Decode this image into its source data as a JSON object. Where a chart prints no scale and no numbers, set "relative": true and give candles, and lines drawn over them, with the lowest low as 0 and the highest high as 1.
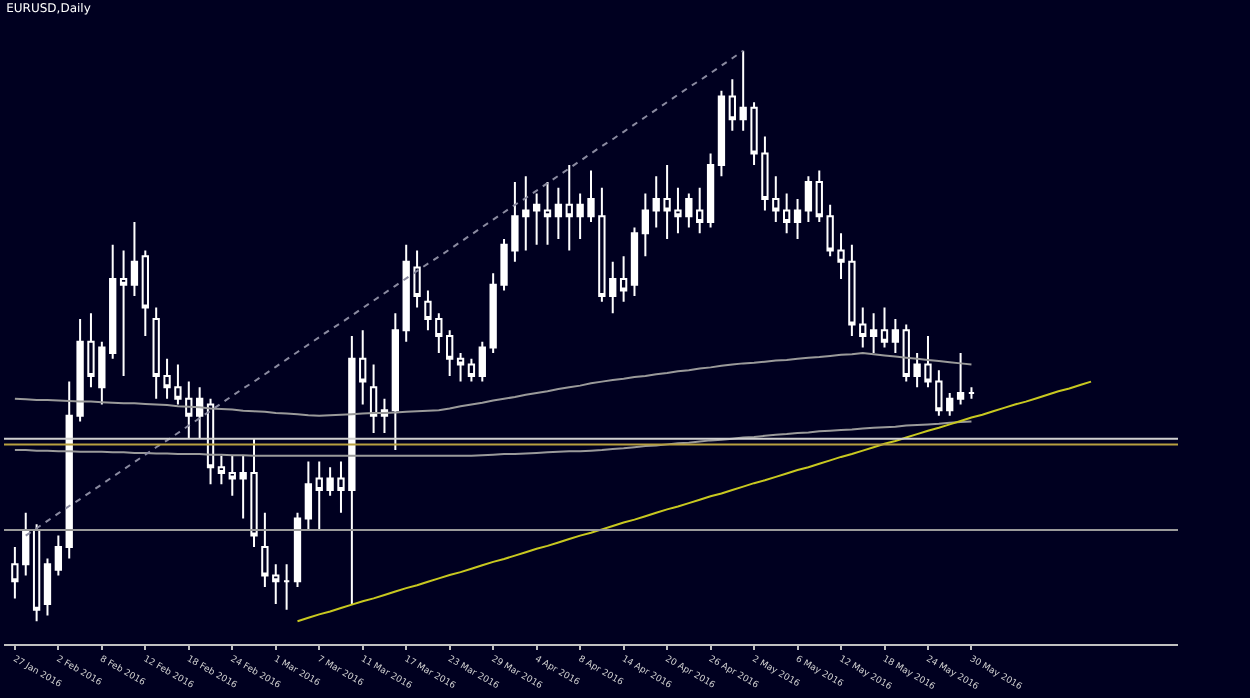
{
  "chart_data": {
    "type": "candlestick",
    "title": "EURUSD,Daily",
    "relative": true,
    "categories": [
      "27 Jan 2016",
      null,
      null,
      null,
      "2 Feb 2016",
      null,
      null,
      null,
      "8 Feb 2016",
      null,
      null,
      null,
      "12 Feb 2016",
      null,
      null,
      null,
      "18 Feb 2016",
      null,
      null,
      null,
      "24 Feb 2016",
      null,
      null,
      null,
      "1 Mar 2016",
      null,
      null,
      null,
      "7 Mar 2016",
      null,
      null,
      null,
      "11 Mar 2016",
      null,
      null,
      null,
      "17 Mar 2016",
      null,
      null,
      null,
      "23 Mar 2016",
      null,
      null,
      null,
      "29 Mar 2016",
      null,
      null,
      null,
      "4 Apr 2016",
      null,
      null,
      null,
      "8 Apr 2016",
      null,
      null,
      null,
      "14 Apr 2016",
      null,
      null,
      null,
      "20 Apr 2016",
      null,
      null,
      null,
      "26 Apr 2016",
      null,
      null,
      null,
      "2 May 2016",
      null,
      null,
      null,
      "6 May 2016",
      null,
      null,
      null,
      "12 May 2016",
      null,
      null,
      null,
      "18 May 2016",
      null,
      null,
      null,
      "24 May 2016",
      null,
      null,
      null,
      "30 May 2016",
      null,
      null,
      null,
      null,
      null,
      null,
      null,
      null,
      null,
      null,
      null
    ],
    "ohlc": [
      [
        0.1,
        0.13,
        0.04,
        0.07
      ],
      [
        0.1,
        0.19,
        0.08,
        0.16
      ],
      [
        0.16,
        0.17,
        0.0,
        0.02
      ],
      [
        0.03,
        0.11,
        0.01,
        0.1
      ],
      [
        0.09,
        0.15,
        0.08,
        0.13
      ],
      [
        0.13,
        0.42,
        0.11,
        0.36
      ],
      [
        0.36,
        0.53,
        0.35,
        0.49
      ],
      [
        0.49,
        0.54,
        0.41,
        0.43
      ],
      [
        0.41,
        0.49,
        0.38,
        0.48
      ],
      [
        0.47,
        0.66,
        0.46,
        0.6
      ],
      [
        0.6,
        0.65,
        0.43,
        0.59
      ],
      [
        0.59,
        0.7,
        0.57,
        0.63
      ],
      [
        0.64,
        0.65,
        0.5,
        0.55
      ],
      [
        0.53,
        0.55,
        0.39,
        0.43
      ],
      [
        0.43,
        0.46,
        0.39,
        0.41
      ],
      [
        0.41,
        0.45,
        0.38,
        0.39
      ],
      [
        0.39,
        0.42,
        0.32,
        0.36
      ],
      [
        0.36,
        0.41,
        0.32,
        0.39
      ],
      [
        0.38,
        0.39,
        0.24,
        0.27
      ],
      [
        0.27,
        0.29,
        0.24,
        0.26
      ],
      [
        0.26,
        0.29,
        0.22,
        0.25
      ],
      [
        0.25,
        0.29,
        0.18,
        0.26
      ],
      [
        0.26,
        0.32,
        0.13,
        0.15
      ],
      [
        0.13,
        0.19,
        0.06,
        0.08
      ],
      [
        0.08,
        0.1,
        0.03,
        0.07
      ],
      [
        0.07,
        0.1,
        0.02,
        0.07
      ],
      [
        0.07,
        0.19,
        0.06,
        0.18
      ],
      [
        0.18,
        0.28,
        0.16,
        0.24
      ],
      [
        0.25,
        0.28,
        0.16,
        0.23
      ],
      [
        0.23,
        0.27,
        0.22,
        0.25
      ],
      [
        0.25,
        0.28,
        0.19,
        0.23
      ],
      [
        0.23,
        0.5,
        0.03,
        0.46
      ],
      [
        0.46,
        0.51,
        0.38,
        0.42
      ],
      [
        0.41,
        0.45,
        0.33,
        0.36
      ],
      [
        0.36,
        0.39,
        0.33,
        0.37
      ],
      [
        0.37,
        0.54,
        0.3,
        0.51
      ],
      [
        0.51,
        0.66,
        0.49,
        0.63
      ],
      [
        0.62,
        0.65,
        0.55,
        0.57
      ],
      [
        0.56,
        0.58,
        0.51,
        0.53
      ],
      [
        0.53,
        0.54,
        0.47,
        0.5
      ],
      [
        0.5,
        0.51,
        0.43,
        0.46
      ],
      [
        0.46,
        0.47,
        0.42,
        0.45
      ],
      [
        0.45,
        0.46,
        0.42,
        0.43
      ],
      [
        0.43,
        0.49,
        0.42,
        0.48
      ],
      [
        0.48,
        0.61,
        0.47,
        0.59
      ],
      [
        0.59,
        0.67,
        0.58,
        0.66
      ],
      [
        0.65,
        0.77,
        0.63,
        0.71
      ],
      [
        0.71,
        0.78,
        0.65,
        0.72
      ],
      [
        0.72,
        0.75,
        0.66,
        0.73
      ],
      [
        0.72,
        0.77,
        0.66,
        0.71
      ],
      [
        0.71,
        0.76,
        0.67,
        0.73
      ],
      [
        0.73,
        0.8,
        0.65,
        0.71
      ],
      [
        0.71,
        0.75,
        0.67,
        0.73
      ],
      [
        0.71,
        0.79,
        0.7,
        0.74
      ],
      [
        0.71,
        0.76,
        0.56,
        0.57
      ],
      [
        0.57,
        0.63,
        0.54,
        0.6
      ],
      [
        0.6,
        0.64,
        0.56,
        0.58
      ],
      [
        0.59,
        0.69,
        0.57,
        0.68
      ],
      [
        0.68,
        0.75,
        0.64,
        0.72
      ],
      [
        0.72,
        0.78,
        0.69,
        0.74
      ],
      [
        0.74,
        0.8,
        0.67,
        0.72
      ],
      [
        0.72,
        0.76,
        0.68,
        0.71
      ],
      [
        0.71,
        0.75,
        0.69,
        0.74
      ],
      [
        0.72,
        0.76,
        0.68,
        0.7
      ],
      [
        0.7,
        0.82,
        0.69,
        0.8
      ],
      [
        0.8,
        0.93,
        0.78,
        0.92
      ],
      [
        0.92,
        0.95,
        0.86,
        0.88
      ],
      [
        0.88,
        1.0,
        0.86,
        0.9
      ],
      [
        0.9,
        0.91,
        0.8,
        0.82
      ],
      [
        0.82,
        0.85,
        0.72,
        0.74
      ],
      [
        0.74,
        0.78,
        0.7,
        0.72
      ],
      [
        0.72,
        0.75,
        0.68,
        0.7
      ],
      [
        0.7,
        0.74,
        0.67,
        0.72
      ],
      [
        0.72,
        0.78,
        0.7,
        0.77
      ],
      [
        0.77,
        0.79,
        0.7,
        0.71
      ],
      [
        0.71,
        0.73,
        0.64,
        0.65
      ],
      [
        0.65,
        0.68,
        0.6,
        0.63
      ],
      [
        0.63,
        0.66,
        0.5,
        0.52
      ],
      [
        0.52,
        0.55,
        0.48,
        0.5
      ],
      [
        0.5,
        0.54,
        0.47,
        0.51
      ],
      [
        0.51,
        0.55,
        0.48,
        0.49
      ],
      [
        0.49,
        0.53,
        0.47,
        0.51
      ],
      [
        0.51,
        0.52,
        0.42,
        0.43
      ],
      [
        0.43,
        0.47,
        0.41,
        0.45
      ],
      [
        0.45,
        0.5,
        0.41,
        0.42
      ],
      [
        0.42,
        0.44,
        0.36,
        0.37
      ],
      [
        0.37,
        0.4,
        0.36,
        0.39
      ],
      [
        0.39,
        0.47,
        0.38,
        0.4
      ],
      [
        0.4,
        0.41,
        0.39,
        0.4
      ],
      null,
      null,
      null,
      null,
      null,
      null,
      null,
      null,
      null,
      null,
      null
    ],
    "series": [
      {
        "type": "line",
        "color": "#9a9a9a",
        "line_style": "solid",
        "values": [
          0.39,
          0.389,
          0.388,
          0.388,
          0.387,
          0.386,
          0.385,
          0.385,
          0.384,
          0.383,
          0.382,
          0.382,
          0.381,
          0.38,
          0.379,
          0.377,
          0.376,
          0.375,
          0.373,
          0.372,
          0.371,
          0.369,
          0.368,
          0.367,
          0.365,
          0.364,
          0.363,
          0.361,
          0.36,
          0.361,
          0.362,
          0.363,
          0.364,
          0.365,
          0.365,
          0.366,
          0.367,
          0.368,
          0.369,
          0.37,
          0.373,
          0.377,
          0.38,
          0.383,
          0.387,
          0.39,
          0.393,
          0.397,
          0.4,
          0.403,
          0.407,
          0.41,
          0.413,
          0.417,
          0.42,
          0.423,
          0.425,
          0.428,
          0.43,
          0.433,
          0.435,
          0.438,
          0.44,
          0.443,
          0.445,
          0.448,
          0.45,
          0.452,
          0.453,
          0.455,
          0.457,
          0.458,
          0.46,
          0.462,
          0.463,
          0.465,
          0.467,
          0.468,
          0.47,
          0.468,
          0.466,
          0.464,
          0.462,
          0.46,
          0.458,
          0.456,
          0.454,
          0.452,
          0.45,
          null,
          null,
          null,
          null,
          null,
          null,
          null,
          null,
          null,
          null,
          null
        ]
      },
      {
        "type": "line",
        "color": "#9a9a9a",
        "line_style": "solid",
        "values": [
          0.3,
          0.3,
          0.299,
          0.299,
          0.298,
          0.298,
          0.297,
          0.297,
          0.297,
          0.296,
          0.296,
          0.295,
          0.295,
          0.294,
          0.294,
          0.293,
          0.293,
          0.293,
          0.292,
          0.292,
          0.291,
          0.291,
          0.29,
          0.29,
          0.29,
          0.29,
          0.29,
          0.29,
          0.29,
          0.29,
          0.29,
          0.29,
          0.29,
          0.29,
          0.29,
          0.29,
          0.29,
          0.29,
          0.29,
          0.29,
          0.29,
          0.29,
          0.29,
          0.291,
          0.292,
          0.293,
          0.293,
          0.294,
          0.295,
          0.296,
          0.297,
          0.298,
          0.298,
          0.299,
          0.3,
          0.302,
          0.303,
          0.305,
          0.307,
          0.308,
          0.31,
          0.312,
          0.313,
          0.315,
          0.317,
          0.318,
          0.32,
          0.322,
          0.323,
          0.325,
          0.327,
          0.328,
          0.33,
          0.331,
          0.333,
          0.334,
          0.335,
          0.336,
          0.338,
          0.339,
          0.34,
          0.341,
          0.343,
          0.344,
          0.345,
          0.346,
          0.348,
          0.349,
          0.35,
          null,
          null,
          null,
          null,
          null,
          null,
          null,
          null,
          null,
          null,
          null
        ]
      },
      {
        "type": "line",
        "color": "#8a8aa0",
        "line_style": "dotted",
        "values": [
          null,
          0.15,
          0.163,
          0.176,
          0.189,
          0.202,
          0.214,
          0.227,
          0.24,
          0.253,
          0.266,
          0.279,
          0.292,
          0.305,
          0.317,
          0.33,
          0.343,
          0.356,
          0.369,
          0.382,
          0.395,
          0.408,
          0.42,
          0.433,
          0.446,
          0.459,
          0.472,
          0.485,
          0.498,
          0.511,
          0.523,
          0.536,
          0.549,
          0.562,
          0.575,
          0.588,
          0.601,
          0.614,
          0.627,
          0.639,
          0.652,
          0.665,
          0.678,
          0.691,
          0.704,
          0.717,
          0.73,
          0.742,
          0.755,
          0.768,
          0.781,
          0.794,
          0.807,
          0.82,
          0.833,
          0.845,
          0.858,
          0.871,
          0.884,
          0.897,
          0.91,
          0.923,
          0.936,
          0.948,
          0.961,
          0.974,
          0.987,
          1.0,
          null,
          null,
          null,
          null,
          null,
          null,
          null,
          null,
          null,
          null,
          null,
          null,
          null,
          null,
          null,
          null,
          null,
          null,
          null,
          null,
          null,
          null,
          null,
          null,
          null,
          null,
          null,
          null,
          null,
          null,
          null,
          null
        ]
      },
      {
        "type": "line",
        "color": "#c8c820",
        "line_style": "solid",
        "values": [
          null,
          null,
          null,
          null,
          null,
          null,
          null,
          null,
          null,
          null,
          null,
          null,
          null,
          null,
          null,
          null,
          null,
          null,
          null,
          null,
          null,
          null,
          null,
          null,
          null,
          null,
          0.0,
          0.006,
          0.012,
          0.017,
          0.023,
          0.029,
          0.035,
          0.04,
          0.046,
          0.052,
          0.058,
          0.063,
          0.069,
          0.075,
          0.081,
          0.086,
          0.092,
          0.098,
          0.104,
          0.109,
          0.115,
          0.121,
          0.127,
          0.132,
          0.138,
          0.144,
          0.15,
          0.155,
          0.161,
          0.167,
          0.173,
          0.178,
          0.184,
          0.19,
          0.196,
          0.201,
          0.207,
          0.213,
          0.219,
          0.224,
          0.23,
          0.236,
          0.242,
          0.247,
          0.253,
          0.259,
          0.265,
          0.27,
          0.276,
          0.282,
          0.288,
          0.293,
          0.299,
          0.305,
          0.311,
          0.316,
          0.322,
          0.328,
          0.334,
          0.339,
          0.345,
          0.351,
          0.357,
          0.362,
          0.368,
          0.374,
          0.38,
          0.385,
          0.391,
          0.397,
          0.403,
          0.408,
          0.414,
          0.42
        ]
      }
    ],
    "ref_lines": [
      {
        "axis": "y",
        "value": 0.32,
        "color": "#d0d0d0"
      },
      {
        "axis": "y",
        "value": 0.31,
        "color": "#b8a040"
      },
      {
        "axis": "y",
        "value": 0.16,
        "color": "#9a9a9a"
      }
    ]
  }
}
